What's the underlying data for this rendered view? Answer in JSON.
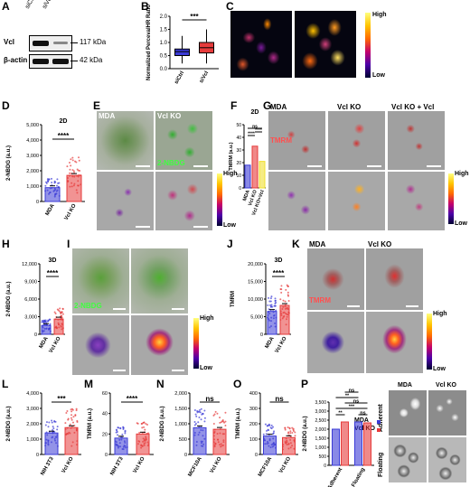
{
  "panel_labels": [
    "A",
    "B",
    "C",
    "D",
    "E",
    "F",
    "G",
    "H",
    "I",
    "J",
    "K",
    "L",
    "M",
    "N",
    "O",
    "P"
  ],
  "blot": {
    "lanes": [
      "siCtrl",
      "siVcl"
    ],
    "rows": [
      {
        "protein": "Vcl",
        "size": "117 kDa"
      },
      {
        "protein": "β-actin",
        "size": "42 kDa"
      }
    ]
  },
  "B": {
    "ylabel": "Normalized PercevalHR Ratio",
    "yticks": [
      "0.0",
      "0.5",
      "1.0",
      "1.5",
      "2.0"
    ],
    "cats": [
      "siCtrl",
      "siVcl"
    ],
    "sig": "***"
  },
  "C": {
    "labels": [
      "siCtrl",
      "siVcl"
    ],
    "cb_high": "High",
    "cb_low": "Low"
  },
  "D": {
    "title": "2D",
    "ylabel": "2-NBDG (a.u.)",
    "yticks": [
      "0",
      "1,000",
      "2,000",
      "3,000",
      "4,000",
      "5,000"
    ],
    "cats": [
      "MDA",
      "Vcl KO"
    ],
    "sig": "****"
  },
  "E": {
    "cols": [
      "MDA",
      "Vcl KO"
    ],
    "stain": "2-NBDG",
    "cb_high": "High",
    "cb_low": "Low"
  },
  "F": {
    "title": "2D",
    "ylabel": "TMRM (a.u.)",
    "yticks": [
      "0",
      "10",
      "20",
      "30",
      "40",
      "50"
    ],
    "cats": [
      "MDA",
      "Vcl KO",
      "Vcl KO+Vcl"
    ],
    "sig": [
      "ns",
      "****",
      "****"
    ]
  },
  "G": {
    "cols": [
      "MDA",
      "Vcl KO",
      "Vcl KO + Vcl"
    ],
    "stain": "TMRM",
    "cb_high": "High",
    "cb_low": "Low"
  },
  "H": {
    "title": "3D",
    "ylabel": "2-NBDG (a.u.)",
    "yticks": [
      "0",
      "3,000",
      "6,000",
      "9,000",
      "12,000"
    ],
    "cats": [
      "MDA",
      "Vcl KO"
    ],
    "sig": "****"
  },
  "I": {
    "stain": "2-NBDG",
    "cb_high": "High",
    "cb_low": "Low"
  },
  "J": {
    "title": "3D",
    "ylabel": "TMRM",
    "yticks": [
      "0",
      "5,000",
      "10,000",
      "15,000",
      "20,000"
    ],
    "cats": [
      "MDA",
      "Vcl KO"
    ],
    "sig": "****"
  },
  "K": {
    "cols": [
      "MDA",
      "Vcl KO"
    ],
    "stain": "TMRM",
    "cb_high": "High",
    "cb_low": "Low"
  },
  "L": {
    "ylabel": "2-NBDG (a.u.)",
    "yticks": [
      "0",
      "1,000",
      "2,000",
      "3,000",
      "4,000"
    ],
    "cats": [
      "NIH 3T3",
      "Vcl KO"
    ],
    "sig": "***"
  },
  "M": {
    "ylabel": "TMRM (a.u.)",
    "yticks": [
      "0",
      "20",
      "40",
      "60"
    ],
    "cats": [
      "NIH 3T3",
      "Vcl KO"
    ],
    "sig": "****"
  },
  "N": {
    "ylabel": "2-NBDG (a.u.)",
    "yticks": [
      "0",
      "500",
      "1,000",
      "1,500",
      "2,000"
    ],
    "cats": [
      "MCF10A",
      "Vcl KO"
    ],
    "sig": "ns"
  },
  "O": {
    "ylabel": "TMRM (a.u.)",
    "yticks": [
      "0",
      "100",
      "200",
      "300",
      "400"
    ],
    "cats": [
      "MCF10A",
      "Vcl KO"
    ],
    "sig": "ns"
  },
  "P": {
    "ylabel": "2-NBDG (a.u.)",
    "yticks": [
      "0",
      "500",
      "1,000",
      "1,500",
      "2,000",
      "2,500",
      "3,000",
      "3,500"
    ],
    "cats": [
      "Adherent",
      "Floating"
    ],
    "legend": [
      "MDA",
      "Vcl KO"
    ],
    "sig": [
      "**",
      "***",
      "ns",
      "**",
      "ns",
      "ns"
    ],
    "img_cols": [
      "MDA",
      "Vcl KO"
    ],
    "img_rows": [
      "Adherent",
      "Floating"
    ]
  },
  "chart_data": [
    {
      "panel": "B",
      "type": "box",
      "categories": [
        "siCtrl",
        "siVcl"
      ],
      "values": [
        {
          "q1": 0.5,
          "median": 0.65,
          "q3": 0.75,
          "min": 0.2,
          "max": 1.25
        },
        {
          "q1": 0.6,
          "median": 0.8,
          "q3": 1.0,
          "min": 0.2,
          "max": 1.5
        }
      ],
      "ylim": [
        0,
        2
      ],
      "colors": [
        "#3b3bd6",
        "#e63b3b"
      ]
    },
    {
      "panel": "D",
      "type": "bar",
      "categories": [
        "MDA",
        "Vcl KO"
      ],
      "values": [
        900,
        1700
      ],
      "ylim": [
        0,
        5000
      ],
      "colors": [
        "#3b3bd6",
        "#e63b3b"
      ]
    },
    {
      "panel": "F",
      "type": "bar",
      "categories": [
        "MDA",
        "Vcl KO",
        "Vcl KO+Vcl"
      ],
      "values": [
        18,
        33,
        21
      ],
      "ylim": [
        0,
        50
      ],
      "colors": [
        "#3b3bd6",
        "#e63b3b",
        "#f0e030"
      ]
    },
    {
      "panel": "H",
      "type": "bar",
      "categories": [
        "MDA",
        "Vcl KO"
      ],
      "values": [
        1500,
        2600
      ],
      "ylim": [
        0,
        12000
      ],
      "colors": [
        "#3b3bd6",
        "#e63b3b"
      ]
    },
    {
      "panel": "J",
      "type": "bar",
      "categories": [
        "MDA",
        "Vcl KO"
      ],
      "values": [
        6500,
        8200
      ],
      "ylim": [
        0,
        20000
      ],
      "colors": [
        "#3b3bd6",
        "#e63b3b"
      ]
    },
    {
      "panel": "L",
      "type": "bar",
      "categories": [
        "NIH 3T3",
        "Vcl KO"
      ],
      "values": [
        1400,
        1750
      ],
      "ylim": [
        0,
        4000
      ],
      "colors": [
        "#3b3bd6",
        "#e63b3b"
      ]
    },
    {
      "panel": "M",
      "type": "bar",
      "categories": [
        "NIH 3T3",
        "Vcl KO"
      ],
      "values": [
        16,
        20
      ],
      "ylim": [
        0,
        60
      ],
      "colors": [
        "#3b3bd6",
        "#e63b3b"
      ]
    },
    {
      "panel": "N",
      "type": "bar",
      "categories": [
        "MCF10A",
        "Vcl KO"
      ],
      "values": [
        870,
        820
      ],
      "ylim": [
        0,
        2000
      ],
      "colors": [
        "#3b3bd6",
        "#e63b3b"
      ]
    },
    {
      "panel": "O",
      "type": "bar",
      "categories": [
        "MCF10A",
        "Vcl KO"
      ],
      "values": [
        120,
        110
      ],
      "ylim": [
        0,
        400
      ],
      "colors": [
        "#3b3bd6",
        "#e63b3b"
      ]
    },
    {
      "panel": "P",
      "type": "bar",
      "categories": [
        "Adherent",
        "Floating"
      ],
      "series": [
        {
          "name": "MDA",
          "values": [
            2000,
            2400
          ]
        },
        {
          "name": "Vcl KO",
          "values": [
            2400,
            2350
          ]
        }
      ],
      "ylim": [
        0,
        3500
      ],
      "colors": [
        "#3b3bd6",
        "#e63b3b"
      ]
    }
  ]
}
